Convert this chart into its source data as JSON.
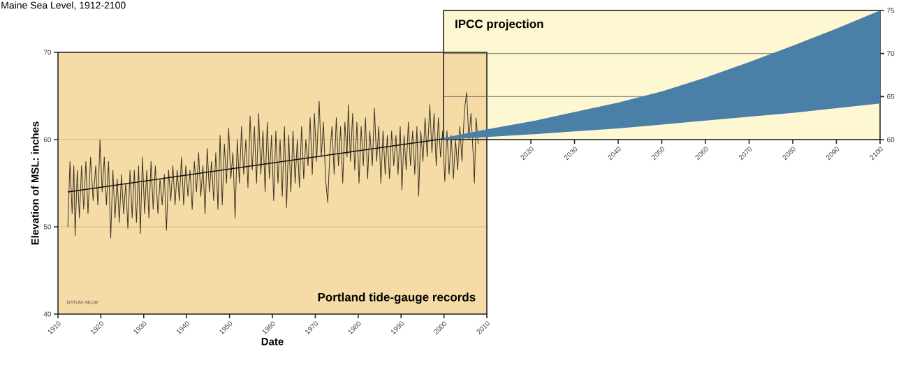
{
  "chart_data": [
    {
      "type": "line",
      "title": "Maine Sea Level, 1912-2100",
      "xlabel": "Date",
      "ylabel": "Elevation of MSL: inches",
      "annotations": [
        "Portland tide-gauge records",
        "DATUM: MLLW"
      ],
      "xlim": [
        1910,
        2010
      ],
      "xticks": [
        1910,
        1920,
        1930,
        1940,
        1950,
        1960,
        1970,
        1980,
        1990,
        2000,
        2010
      ],
      "ylim": [
        40,
        70
      ],
      "yticks": [
        40,
        50,
        60,
        70
      ],
      "grid": "y",
      "series": [
        {
          "color": "#3b3325",
          "x": [
            1912.3,
            1912.8,
            1913.3,
            1913.7,
            1914.0,
            1914.5,
            1915.0,
            1915.5,
            1916.0,
            1916.5,
            1917.0,
            1917.6,
            1918.2,
            1918.8,
            1919.3,
            1919.8,
            1920.3,
            1920.8,
            1921.3,
            1921.8,
            1922.3,
            1922.8,
            1923.3,
            1923.8,
            1924.3,
            1924.8,
            1925.3,
            1925.8,
            1926.3,
            1926.8,
            1927.3,
            1927.8,
            1928.3,
            1928.8,
            1929.2,
            1929.7,
            1930.2,
            1930.7,
            1931.2,
            1931.7,
            1932.2,
            1932.7,
            1933.3,
            1933.8,
            1934.3,
            1934.8,
            1935.3,
            1935.8,
            1936.3,
            1936.8,
            1937.3,
            1937.8,
            1938.3,
            1938.8,
            1939.3,
            1939.8,
            1940.3,
            1940.8,
            1941.3,
            1941.8,
            1942.3,
            1942.8,
            1943.3,
            1943.8,
            1944.3,
            1944.8,
            1945.3,
            1945.8,
            1946.3,
            1946.8,
            1947.3,
            1947.8,
            1948.3,
            1948.8,
            1949.3,
            1949.8,
            1950.3,
            1950.8,
            1951.3,
            1951.8,
            1952.3,
            1952.8,
            1953.3,
            1953.8,
            1954.3,
            1954.8,
            1955.3,
            1955.8,
            1956.3,
            1956.8,
            1957.3,
            1957.8,
            1958.3,
            1958.8,
            1959.3,
            1959.8,
            1960.3,
            1960.8,
            1961.3,
            1961.8,
            1962.3,
            1962.8,
            1963.3,
            1963.8,
            1964.3,
            1964.8,
            1965.3,
            1965.8,
            1966.3,
            1966.8,
            1967.3,
            1967.8,
            1968.3,
            1968.8,
            1969.3,
            1969.8,
            1970.3,
            1970.9,
            1971.4,
            1971.9,
            1972.4,
            1972.9,
            1973.4,
            1973.9,
            1974.4,
            1974.9,
            1975.4,
            1975.9,
            1976.4,
            1976.9,
            1977.4,
            1977.7,
            1978.2,
            1978.7,
            1979.2,
            1979.7,
            1980.2,
            1980.7,
            1981.2,
            1981.7,
            1982.2,
            1982.7,
            1983.3,
            1983.8,
            1984.3,
            1984.8,
            1985.3,
            1985.8,
            1986.3,
            1986.8,
            1987.3,
            1987.8,
            1988.3,
            1988.8,
            1989.3,
            1989.8,
            1990.2,
            1990.7,
            1991.2,
            1991.7,
            1992.2,
            1992.7,
            1993.2,
            1993.7,
            1994.1,
            1994.6,
            1995.1,
            1995.6,
            1996.1,
            1996.7,
            1997.2,
            1997.7,
            1998.2,
            1998.7,
            1999.2,
            1999.7,
            2000.2,
            2000.7,
            2001.2,
            2001.7,
            2002.2,
            2002.7,
            2003.2,
            2003.7,
            2004.2,
            2004.8,
            2005.3,
            2005.8,
            2006.3,
            2006.8,
            2007.1,
            2007.5,
            2008.0
          ],
          "values": [
            50.0,
            57.5,
            51.5,
            57.0,
            49.0,
            56.5,
            51.0,
            57.0,
            52.0,
            57.5,
            51.5,
            58.0,
            53.0,
            57.0,
            52.5,
            60.0,
            54.0,
            58.0,
            52.5,
            57.5,
            48.7,
            56.5,
            51.0,
            55.5,
            50.5,
            56.0,
            51.5,
            55.0,
            49.8,
            56.5,
            51.0,
            56.5,
            50.5,
            57.0,
            49.2,
            58.0,
            51.5,
            56.5,
            51.0,
            57.5,
            52.0,
            57.0,
            51.5,
            55.5,
            52.5,
            56.0,
            49.6,
            56.5,
            53.0,
            57.0,
            52.5,
            56.5,
            53.0,
            58.0,
            52.5,
            57.0,
            53.5,
            56.5,
            52.0,
            57.5,
            54.0,
            58.5,
            53.5,
            57.0,
            51.5,
            59.0,
            54.0,
            57.5,
            53.0,
            58.5,
            52.0,
            60.5,
            52.5,
            59.5,
            55.0,
            61.3,
            55.5,
            58.5,
            51.0,
            60.0,
            55.0,
            61.5,
            56.0,
            60.0,
            54.5,
            62.7,
            56.5,
            61.5,
            55.0,
            63.0,
            56.0,
            61.0,
            54.0,
            62.0,
            55.5,
            60.5,
            53.0,
            61.0,
            55.0,
            60.0,
            53.5,
            61.5,
            52.2,
            60.5,
            54.0,
            61.0,
            55.0,
            60.0,
            54.5,
            61.5,
            55.5,
            60.0,
            57.0,
            62.5,
            56.0,
            63.0,
            57.5,
            64.4,
            58.0,
            62.0,
            55.5,
            52.8,
            58.5,
            61.5,
            56.0,
            62.5,
            57.0,
            61.5,
            55.0,
            62.0,
            58.0,
            64.0,
            57.5,
            63.0,
            56.5,
            62.0,
            55.0,
            61.5,
            57.0,
            62.5,
            55.5,
            61.0,
            57.0,
            63.6,
            57.5,
            61.5,
            55.0,
            61.0,
            56.0,
            60.5,
            55.5,
            61.0,
            57.0,
            60.5,
            56.0,
            61.5,
            54.2,
            60.5,
            56.5,
            62.0,
            57.0,
            61.0,
            56.0,
            61.5,
            53.5,
            61.0,
            57.5,
            62.5,
            58.0,
            64.0,
            58.5,
            63.0,
            57.0,
            62.5,
            58.0,
            61.0,
            55.2,
            61.0,
            56.0,
            60.5,
            55.5,
            60.0,
            56.5,
            61.5,
            57.5,
            63.5,
            65.4,
            60.0,
            63.0,
            58.5,
            55.0,
            62.5,
            59.5
          ]
        },
        {
          "color": "#111111",
          "x": [
            1912.3,
            2000.0
          ],
          "values": [
            54.0,
            60.1
          ]
        }
      ]
    },
    {
      "type": "area",
      "annotations": [
        "IPCC projection"
      ],
      "xlim": [
        2000,
        2100
      ],
      "xticks": [
        2020,
        2030,
        2040,
        2050,
        2060,
        2070,
        2080,
        2090,
        2100
      ],
      "ylim": [
        60,
        75
      ],
      "yticks": [
        60,
        65,
        70,
        75
      ],
      "grid": "y",
      "series": [
        {
          "color": "#4a7fa8",
          "x": [
            2000,
            2010,
            2020,
            2030,
            2040,
            2050,
            2060,
            2070,
            2080,
            2090,
            2100
          ],
          "values": [
            null,
            null,
            null,
            null,
            null,
            null,
            null,
            null,
            null,
            null,
            null
          ],
          "lower": [
            60.0,
            60.3,
            60.6,
            60.95,
            61.3,
            61.75,
            62.2,
            62.65,
            63.1,
            63.65,
            64.2
          ],
          "upper": [
            60.2,
            61.2,
            62.1,
            63.2,
            64.3,
            65.6,
            67.2,
            69.0,
            70.9,
            72.9,
            75.0
          ]
        }
      ]
    }
  ]
}
